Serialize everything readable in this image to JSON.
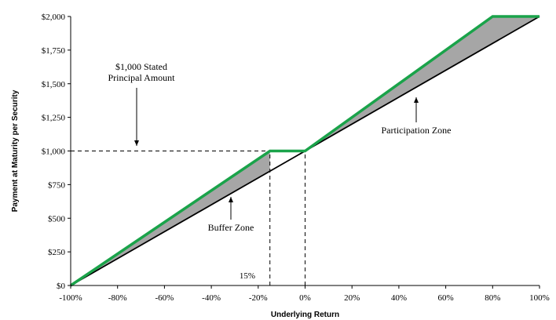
{
  "chart_data": {
    "type": "line",
    "xlabel": "Underlying Return",
    "ylabel": "Payment at Maturity per Security",
    "x_ticks": [
      "-100%",
      "-80%",
      "-60%",
      "-40%",
      "-20%",
      "0%",
      "20%",
      "40%",
      "60%",
      "80%",
      "100%"
    ],
    "y_ticks": [
      "$0",
      "$250",
      "$500",
      "$750",
      "$1,000",
      "$1,250",
      "$1,500",
      "$1,750",
      "$2,000"
    ],
    "xlim": [
      -100,
      100
    ],
    "ylim": [
      0,
      2000
    ],
    "grid": false,
    "series": [
      {
        "name": "",
        "color": "#1aa34a",
        "x": [
          -100,
          -15,
          0,
          80,
          100
        ],
        "y": [
          0,
          1000,
          1000,
          2000,
          2000
        ]
      },
      {
        "name": "",
        "color": "#000000",
        "x": [
          -100,
          100
        ],
        "y": [
          0,
          2000
        ]
      }
    ],
    "shaded_regions": [
      {
        "name": "buffer-zone",
        "color": "#a6a6a6",
        "polygon": [
          [
            -100,
            0
          ],
          [
            -15,
            1000
          ],
          [
            -15,
            850
          ]
        ]
      },
      {
        "name": "participation-zone",
        "color": "#a6a6a6",
        "polygon": [
          [
            0,
            1000
          ],
          [
            80,
            2000
          ],
          [
            100,
            2000
          ]
        ]
      }
    ],
    "reference_lines": [
      {
        "orientation": "horizontal",
        "y": 1000,
        "x_from": -100,
        "x_to": 0,
        "style": "dashed"
      },
      {
        "orientation": "vertical",
        "x": -15,
        "y_from": 0,
        "y_to": 1000,
        "style": "dashed"
      },
      {
        "orientation": "vertical",
        "x": 0,
        "y_from": 0,
        "y_to": 1000,
        "style": "dashed"
      }
    ],
    "annotations": [
      {
        "id": "stated-principal",
        "lines": [
          "$1,000 Stated",
          "Principal Amount"
        ]
      },
      {
        "id": "buffer-zone",
        "lines": [
          "Buffer Zone"
        ]
      },
      {
        "id": "participation-zone",
        "lines": [
          "Participation Zone"
        ]
      },
      {
        "id": "buffer-pct",
        "lines": [
          "15%"
        ]
      }
    ]
  }
}
